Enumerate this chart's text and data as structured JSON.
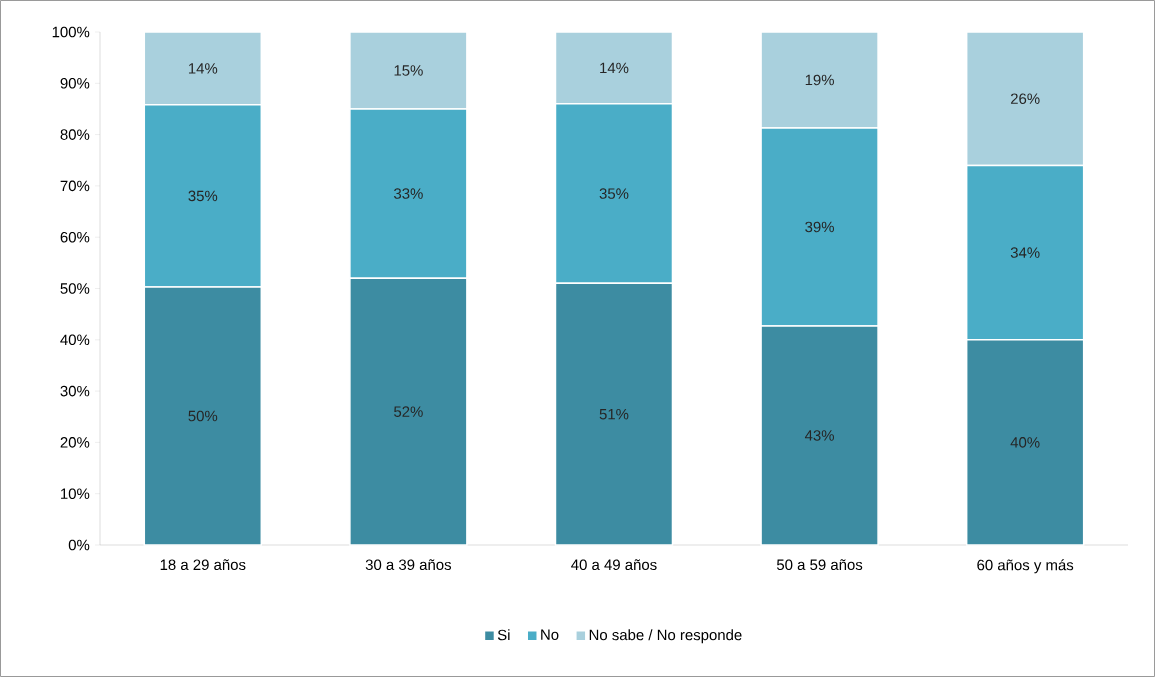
{
  "chart_data": {
    "type": "bar",
    "stacked": true,
    "categories": [
      "18 a 29 años",
      "30 a 39 años",
      "40 a 49 años",
      "50 a 59 años",
      "60  años y más"
    ],
    "series": [
      {
        "name": "Si",
        "color": "#3d8ca2",
        "values": [
          50.3,
          52,
          51,
          42.7,
          40
        ],
        "value_labels": [
          "50%",
          "52%",
          "51%",
          "43%",
          "40%"
        ]
      },
      {
        "name": "No",
        "color": "#4aadc7",
        "values": [
          35.5,
          33,
          35,
          38.6,
          34
        ],
        "value_labels": [
          "35%",
          "33%",
          "35%",
          "39%",
          "34%"
        ]
      },
      {
        "name": "No sabe / No responde",
        "color": "#a9d0dd",
        "values": [
          14.2,
          15,
          14,
          18.7,
          26
        ],
        "value_labels": [
          "14%",
          "15%",
          "14%",
          "19%",
          "26%"
        ]
      }
    ],
    "ylim": [
      0,
      100
    ],
    "yticks": [
      {
        "value": 0,
        "label": "0%"
      },
      {
        "value": 10,
        "label": "10%"
      },
      {
        "value": 20,
        "label": "20%"
      },
      {
        "value": 30,
        "label": "30%"
      },
      {
        "value": 40,
        "label": "40%"
      },
      {
        "value": 50,
        "label": "50%"
      },
      {
        "value": 60,
        "label": "60%"
      },
      {
        "value": 70,
        "label": "70%"
      },
      {
        "value": 80,
        "label": "80%"
      },
      {
        "value": 90,
        "label": "90%"
      },
      {
        "value": 100,
        "label": "100%"
      }
    ],
    "legend": "bottom"
  }
}
